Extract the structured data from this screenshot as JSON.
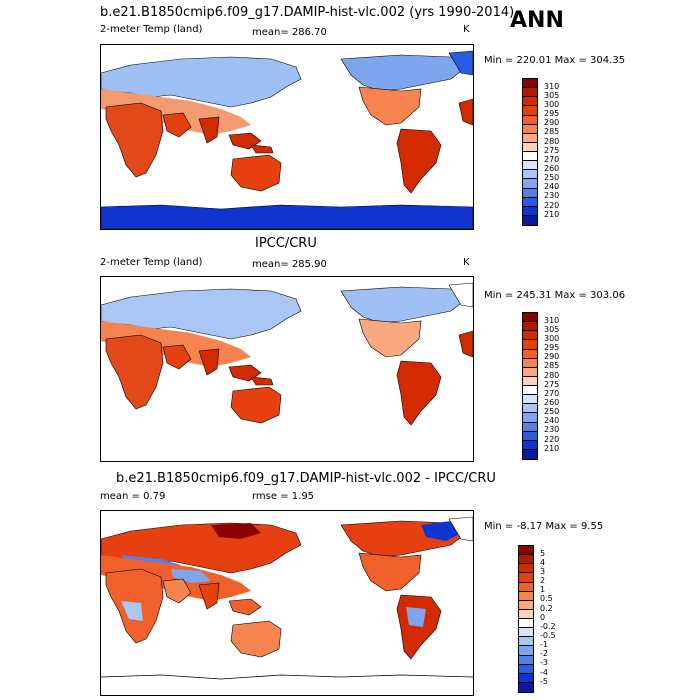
{
  "header": {
    "main_title": "b.e21.B1850cmip6.f09_g17.DAMIP-hist-vlc.002 (yrs 1990-2014)",
    "season": "ANN"
  },
  "panel1": {
    "left": "2-meter Temp (land)",
    "center": "mean= 286.70",
    "right": "K",
    "minmax": "Min = 220.01 Max = 304.35"
  },
  "panel2": {
    "title": "IPCC/CRU",
    "left": "2-meter Temp (land)",
    "center": "mean= 285.90",
    "right": "K",
    "minmax": "Min = 245.31 Max = 303.06"
  },
  "panel3": {
    "title": "b.e21.B1850cmip6.f09_g17.DAMIP-hist-vlc.002 - IPCC/CRU",
    "left": "mean =   0.79",
    "center": "rmse =   1.95",
    "minmax": "Min =  -8.17 Max =   9.55"
  },
  "temp_colorbar": {
    "labels": [
      "310",
      "305",
      "300",
      "295",
      "290",
      "285",
      "280",
      "275",
      "270",
      "260",
      "250",
      "240",
      "230",
      "220",
      "210"
    ],
    "colors": [
      "#8b0000",
      "#b01a00",
      "#d42a00",
      "#e64010",
      "#f0602a",
      "#f5844f",
      "#f9a882",
      "#fcd2bd",
      "#ffffff",
      "#d7e4fb",
      "#aac6f5",
      "#7ea6ee",
      "#5282e6",
      "#2a5ce0",
      "#1034d0",
      "#0a1aa0"
    ]
  },
  "diff_colorbar": {
    "labels": [
      "5",
      "4",
      "3",
      "2",
      "1",
      "0.5",
      "0.2",
      "0",
      "-0.2",
      "-0.5",
      "-1",
      "-2",
      "-3",
      "-4",
      "-5"
    ],
    "colors": [
      "#8b0000",
      "#b01a00",
      "#d42a00",
      "#e64010",
      "#f0602a",
      "#f5844f",
      "#f9a882",
      "#fcd2bd",
      "#ffffff",
      "#d7e4fb",
      "#aac6f5",
      "#7ea6ee",
      "#5282e6",
      "#2a5ce0",
      "#1034d0",
      "#0a1aa0"
    ]
  }
}
